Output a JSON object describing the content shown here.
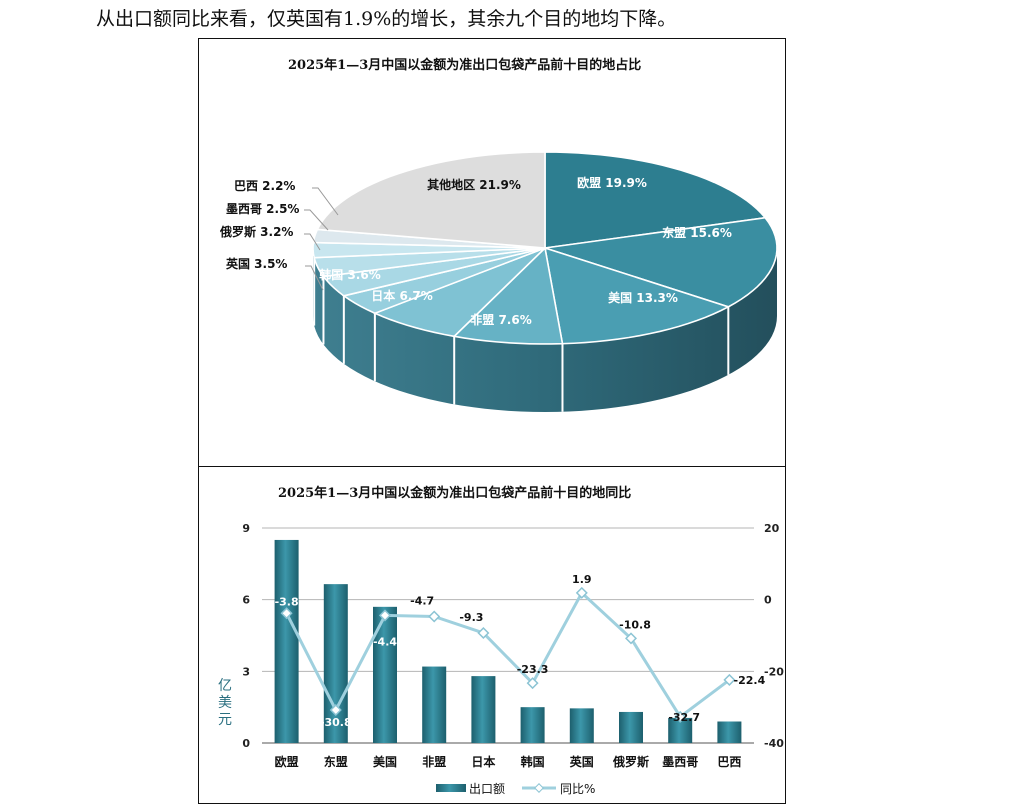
{
  "page": {
    "intro_text": "从出口额同比来看，仅英国有1.9%的增长，其余九个目的地均下降。"
  },
  "colors": {
    "bar": "#2a7d8e",
    "line": "#9fd0de",
    "pie": [
      "#2d7e90",
      "#3a8ea1",
      "#4a9eb2",
      "#66b2c5",
      "#7fc2d3",
      "#97cfde",
      "#a9d8e5",
      "#b8dfea",
      "#c8e6ef",
      "#dde8ee"
    ]
  },
  "chart_data": [
    {
      "type": "pie",
      "title": "2025年1—3月中国以金额为准出口包袋产品前十目的地占比",
      "slices": [
        {
          "label": "欧盟",
          "value": 19.9,
          "text": "欧盟 19.9%"
        },
        {
          "label": "东盟",
          "value": 15.6,
          "text": "东盟 15.6%"
        },
        {
          "label": "美国",
          "value": 13.3,
          "text": "美国 13.3%"
        },
        {
          "label": "非盟",
          "value": 7.6,
          "text": "非盟 7.6%"
        },
        {
          "label": "日本",
          "value": 6.7,
          "text": "日本 6.7%"
        },
        {
          "label": "韩国",
          "value": 3.6,
          "text": "韩国 3.6%"
        },
        {
          "label": "英国",
          "value": 3.5,
          "text": "英国 3.5%"
        },
        {
          "label": "俄罗斯",
          "value": 3.2,
          "text": "俄罗斯 3.2%"
        },
        {
          "label": "墨西哥",
          "value": 2.5,
          "text": "墨西哥 2.5%"
        },
        {
          "label": "巴西",
          "value": 2.2,
          "text": "巴西 2.2%"
        },
        {
          "label": "其他地区",
          "value": 21.9,
          "text": "其他地区 21.9%"
        }
      ]
    },
    {
      "type": "bar",
      "title": "2025年1—3月中国以金额为准出口包袋产品前十目的地同比",
      "categories": [
        "欧盟",
        "东盟",
        "美国",
        "非盟",
        "日本",
        "韩国",
        "英国",
        "俄罗斯",
        "墨西哥",
        "巴西"
      ],
      "ylabel": "亿美元",
      "ylim": [
        0,
        9
      ],
      "yticks": [
        "0",
        "3",
        "6",
        "9"
      ],
      "y2lim": [
        -40,
        20
      ],
      "y2ticks": [
        "-40",
        "-20",
        "0",
        "20"
      ],
      "series": [
        {
          "name": "出口额",
          "type": "bar",
          "values": [
            8.5,
            6.65,
            5.7,
            3.2,
            2.8,
            1.5,
            1.45,
            1.3,
            1.05,
            0.9
          ]
        },
        {
          "name": "同比%",
          "type": "line",
          "axis": "secondary",
          "values": [
            -3.8,
            -30.8,
            -4.4,
            -4.7,
            -9.3,
            -23.3,
            1.9,
            -10.8,
            -32.7,
            -22.4
          ],
          "labels": [
            "-3.8",
            "-30.8",
            "-4.4",
            "-4.7",
            "-9.3",
            "-23.3",
            "1.9",
            "-10.8",
            "-32.7",
            "-22.4"
          ]
        }
      ],
      "grid": true,
      "legend": "bottom"
    }
  ]
}
